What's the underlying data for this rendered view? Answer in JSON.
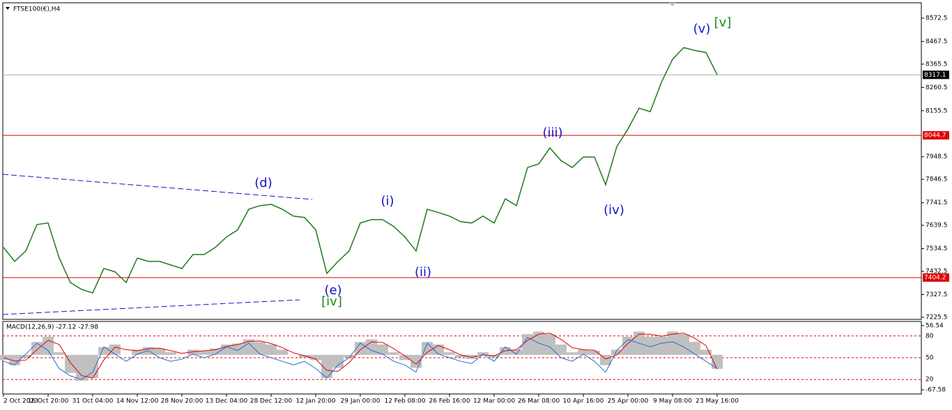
{
  "chart_data": [
    {
      "type": "line",
      "title": "FTSE100(€),H4",
      "color": "#1f7a1f",
      "categories": [
        "2 Oct 2023",
        null,
        null,
        null,
        "16 Oct 20:00",
        null,
        null,
        null,
        "31 Oct 04:00",
        null,
        null,
        null,
        "14 Nov 12:00",
        null,
        null,
        null,
        "28 Nov 20:00",
        null,
        null,
        null,
        "13 Dec 04:00",
        null,
        null,
        null,
        "28 Dec 12:00",
        null,
        null,
        null,
        "12 Jan 20:00",
        null,
        null,
        null,
        "29 Jan 00:00",
        null,
        null,
        null,
        "12 Feb 08:00",
        null,
        null,
        null,
        "26 Feb 16:00",
        null,
        null,
        null,
        "12 Mar 00:00",
        null,
        null,
        null,
        "26 Mar 08:00",
        null,
        null,
        null,
        "10 Apr 16:00",
        null,
        null,
        null,
        "25 Apr 00:00",
        null,
        null,
        null,
        "9 May 08:00",
        null,
        null,
        null,
        "23 May 16:00"
      ],
      "values": [
        7540,
        7477,
        7524,
        7643,
        7650,
        7492,
        7382,
        7351,
        7335,
        7445,
        7430,
        7382,
        7492,
        7477,
        7477,
        7461,
        7445,
        7508,
        7508,
        7540,
        7587,
        7619,
        7712,
        7728,
        7734,
        7712,
        7681,
        7675,
        7619,
        7423,
        7477,
        7524,
        7650,
        7665,
        7665,
        7634,
        7587,
        7524,
        7712,
        7697,
        7681,
        7656,
        7650,
        7681,
        7650,
        7759,
        7728,
        7900,
        7916,
        7988,
        7931,
        7900,
        7947,
        7947,
        7822,
        7994,
        8073,
        8167,
        8151,
        8283,
        8387,
        8440,
        8427,
        8418,
        8317.1
      ],
      "ylim": [
        7216,
        8641.6
      ],
      "yticks": [
        7225.5,
        7327.5,
        7432.5,
        7534.5,
        7639.5,
        7741.5,
        7846.5,
        7948.5,
        8155.5,
        8260.5,
        8365.5,
        8467.5,
        8572.5
      ],
      "hlines": [
        {
          "value": 8044.7,
          "color": "#e00000"
        },
        {
          "value": 7404.2,
          "color": "#e00000"
        },
        {
          "value": 8317.1,
          "color": "#b0b0b0"
        }
      ],
      "annotations": [
        {
          "text": "(d)",
          "color": "#1515c8"
        },
        {
          "text": "(e)",
          "color": "#1515c8"
        },
        {
          "text": "[iv]",
          "color": "#1a8a1a"
        },
        {
          "text": "(i)",
          "color": "#1515c8"
        },
        {
          "text": "(ii)",
          "color": "#1515c8"
        },
        {
          "text": "(iii)",
          "color": "#1515c8"
        },
        {
          "text": "(iv)",
          "color": "#1515c8"
        },
        {
          "text": "(v)",
          "color": "#1515c8"
        },
        {
          "text": "[v]",
          "color": "#1a8a1a"
        }
      ]
    },
    {
      "type": "macd",
      "title": "MACD(12,26,9) -27.12 -27.98",
      "ylim": [
        -67.58,
        56.54
      ],
      "yticks": [
        56.54,
        -67.58
      ],
      "y2lim": [
        0,
        100
      ],
      "y2ticks": [
        80,
        50,
        20
      ],
      "series": [
        {
          "color": "#c0c0c0",
          "values": [
            -10,
            -20,
            -5,
            25,
            35,
            5,
            -35,
            -50,
            -45,
            15,
            20,
            0,
            10,
            15,
            12,
            5,
            0,
            10,
            8,
            12,
            20,
            22,
            30,
            25,
            20,
            10,
            0,
            -5,
            -10,
            -45,
            -25,
            -5,
            25,
            30,
            20,
            5,
            -10,
            -25,
            25,
            20,
            5,
            -5,
            -8,
            5,
            -5,
            15,
            10,
            40,
            45,
            40,
            20,
            5,
            10,
            8,
            -20,
            10,
            35,
            45,
            35,
            35,
            45,
            40,
            25,
            10,
            -27.12
          ]
        },
        {
          "color": "#e00000",
          "values": [
            -5,
            -12,
            -10,
            10,
            28,
            20,
            -15,
            -40,
            -45,
            -10,
            15,
            10,
            8,
            12,
            13,
            8,
            3,
            6,
            8,
            10,
            16,
            20,
            26,
            27,
            22,
            14,
            4,
            -2,
            -8,
            -30,
            -32,
            -15,
            10,
            25,
            24,
            12,
            -2,
            -18,
            5,
            18,
            10,
            0,
            -5,
            0,
            -2,
            8,
            10,
            28,
            40,
            42,
            30,
            14,
            10,
            9,
            -8,
            0,
            22,
            40,
            40,
            36,
            40,
            42,
            32,
            18,
            -27.98
          ]
        },
        {
          "color": "#1e6fd0",
          "axis": "y2",
          "values": [
            45,
            40,
            55,
            70,
            60,
            35,
            25,
            20,
            30,
            65,
            55,
            45,
            55,
            60,
            50,
            45,
            48,
            55,
            50,
            55,
            65,
            60,
            70,
            55,
            50,
            45,
            40,
            45,
            35,
            22,
            40,
            50,
            70,
            60,
            55,
            45,
            40,
            30,
            70,
            55,
            50,
            45,
            42,
            55,
            45,
            65,
            55,
            78,
            70,
            65,
            50,
            45,
            55,
            45,
            30,
            60,
            75,
            70,
            65,
            70,
            72,
            65,
            55,
            45,
            35
          ]
        }
      ]
    }
  ]
}
